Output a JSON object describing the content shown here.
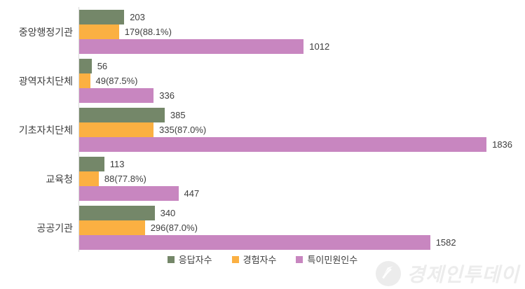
{
  "chart_data": {
    "type": "bar",
    "orientation": "horizontal",
    "title": "",
    "xlabel": "",
    "ylabel": "",
    "xlim": [
      0,
      2000
    ],
    "grid": false,
    "legend_position": "bottom",
    "categories": [
      "중앙행정기관",
      "광역자치단체",
      "기초자치단체",
      "교육청",
      "공공기관"
    ],
    "series": [
      {
        "key": "respondents",
        "name": "응답자수",
        "color": "#748769",
        "values": [
          203,
          56,
          385,
          113,
          340
        ],
        "labels": [
          "203",
          "56",
          "385",
          "113",
          "340"
        ]
      },
      {
        "key": "experienced",
        "name": "경험자수",
        "color": "#fbb042",
        "values": [
          179,
          49,
          335,
          88,
          296
        ],
        "labels": [
          "179(88.1%)",
          "49(87.5%)",
          "335(87.0%)",
          "88(77.8%)",
          "296(87.0%)"
        ]
      },
      {
        "key": "special-complainants",
        "name": "특이민원인수",
        "color": "#c886c0",
        "values": [
          1012,
          336,
          1836,
          447,
          1582
        ],
        "labels": [
          "1012",
          "336",
          "1836",
          "447",
          "1582"
        ]
      }
    ]
  },
  "watermark": {
    "text": "경제인투데이",
    "icon": "arrow-up-circle-icon"
  }
}
